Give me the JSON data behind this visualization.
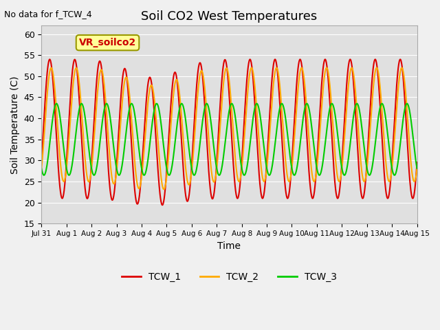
{
  "title": "Soil CO2 West Temperatures",
  "xlabel": "Time",
  "ylabel": "Soil Temperature (C)",
  "ylim": [
    15,
    62
  ],
  "yticks": [
    15,
    20,
    25,
    30,
    35,
    40,
    45,
    50,
    55,
    60
  ],
  "note": "No data for f_TCW_4",
  "annotation": "VR_soilco2",
  "colors": {
    "TCW_1": "#dd0000",
    "TCW_2": "#ffaa00",
    "TCW_3": "#00cc00"
  },
  "background_color": "#f0f0f0",
  "plot_area_color": "#e0e0e0",
  "xtick_labels": [
    "Jul 31",
    "Aug 1",
    "Aug 2",
    "Aug 3",
    "Aug 4",
    "Aug 5",
    "Aug 6",
    "Aug 7",
    "Aug 8",
    "Aug 9",
    "Aug 10",
    "Aug 11",
    "Aug 12",
    "Aug 13",
    "Aug 14",
    "Aug 15"
  ],
  "legend_labels": [
    "TCW_1",
    "TCW_2",
    "TCW_3"
  ]
}
